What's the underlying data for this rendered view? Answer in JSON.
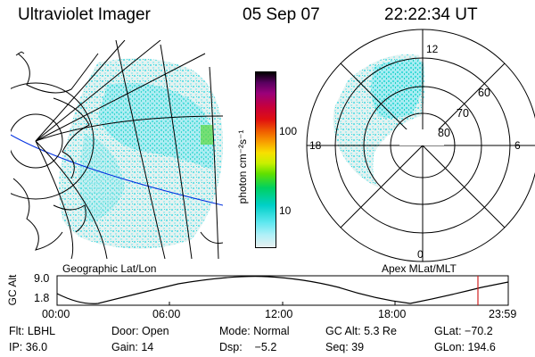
{
  "header": {
    "title": "Ultraviolet Imager",
    "date": "05 Sep 07",
    "time": "22:22:34 UT"
  },
  "colorbar": {
    "label": "photon cm⁻²s⁻¹",
    "ticks": [
      "100",
      "10"
    ],
    "colors": [
      "#000000",
      "#5a0060",
      "#9a007a",
      "#c8003a",
      "#e01010",
      "#f06000",
      "#f8a000",
      "#f8e000",
      "#c8f000",
      "#60e000",
      "#00d060",
      "#00d0c8",
      "#60e8f0",
      "#b0f0f8",
      "#e8f0f0"
    ]
  },
  "geo_panel": {
    "label": "Geographic Lat/Lon"
  },
  "polar_panel": {
    "label": "Apex MLat/MLT",
    "lat_labels": [
      "60",
      "70",
      "80"
    ],
    "mlt_labels": [
      "12",
      "18",
      "6",
      "0"
    ]
  },
  "altitude_plot": {
    "ylabel": "GC Alt",
    "yticks": [
      "9.0",
      "1.8"
    ],
    "xticks": [
      "00:00",
      "06:00",
      "12:00",
      "18:00",
      "23:59"
    ]
  },
  "info": {
    "row1": [
      {
        "key": "flt",
        "text": "Flt: LBHL"
      },
      {
        "key": "door",
        "text": "Door: Open"
      },
      {
        "key": "mode",
        "text": "Mode: Normal"
      },
      {
        "key": "gcalt",
        "text": "GC Alt: 5.3 Re"
      },
      {
        "key": "glat",
        "text": "GLat: −70.2"
      }
    ],
    "row2": [
      {
        "key": "ip",
        "text": "IP: 36.0"
      },
      {
        "key": "gain",
        "text": "Gain: 14"
      },
      {
        "key": "dsp",
        "text": "Dsp:    −5.2"
      },
      {
        "key": "seq",
        "text": "Seq: 39"
      },
      {
        "key": "glon",
        "text": "GLon: 194.6"
      }
    ]
  }
}
